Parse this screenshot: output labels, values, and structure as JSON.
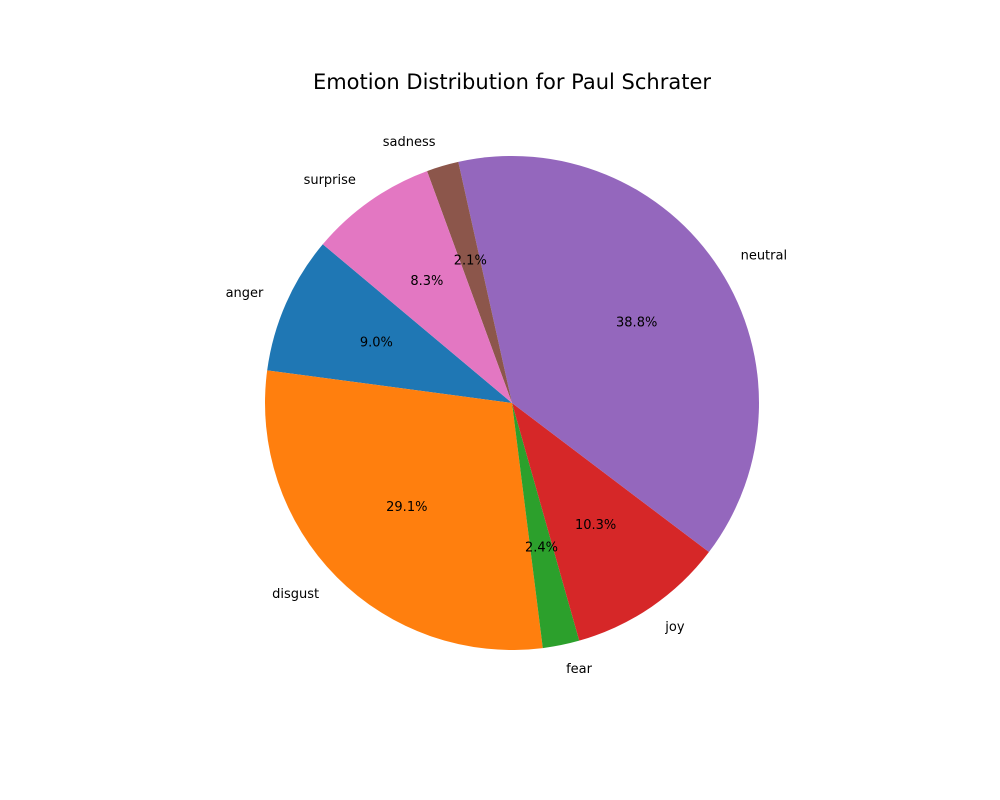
{
  "chart_data": {
    "type": "pie",
    "title": "Emotion Distribution for Paul Schrater",
    "start_angle_deg": 140,
    "direction": "counterclockwise",
    "slices": [
      {
        "label": "anger",
        "percent": 9.0,
        "pct_label": "9.0%",
        "color": "#1f77b4"
      },
      {
        "label": "disgust",
        "percent": 29.1,
        "pct_label": "29.1%",
        "color": "#ff7f0e"
      },
      {
        "label": "fear",
        "percent": 2.4,
        "pct_label": "2.4%",
        "color": "#2ca02c"
      },
      {
        "label": "joy",
        "percent": 10.3,
        "pct_label": "10.3%",
        "color": "#d62728"
      },
      {
        "label": "neutral",
        "percent": 38.8,
        "pct_label": "38.8%",
        "color": "#9467bd"
      },
      {
        "label": "sadness",
        "percent": 2.1,
        "pct_label": "2.1%",
        "color": "#8c564b"
      },
      {
        "label": "surprise",
        "percent": 8.3,
        "pct_label": "8.3%",
        "color": "#e377c2"
      }
    ]
  }
}
